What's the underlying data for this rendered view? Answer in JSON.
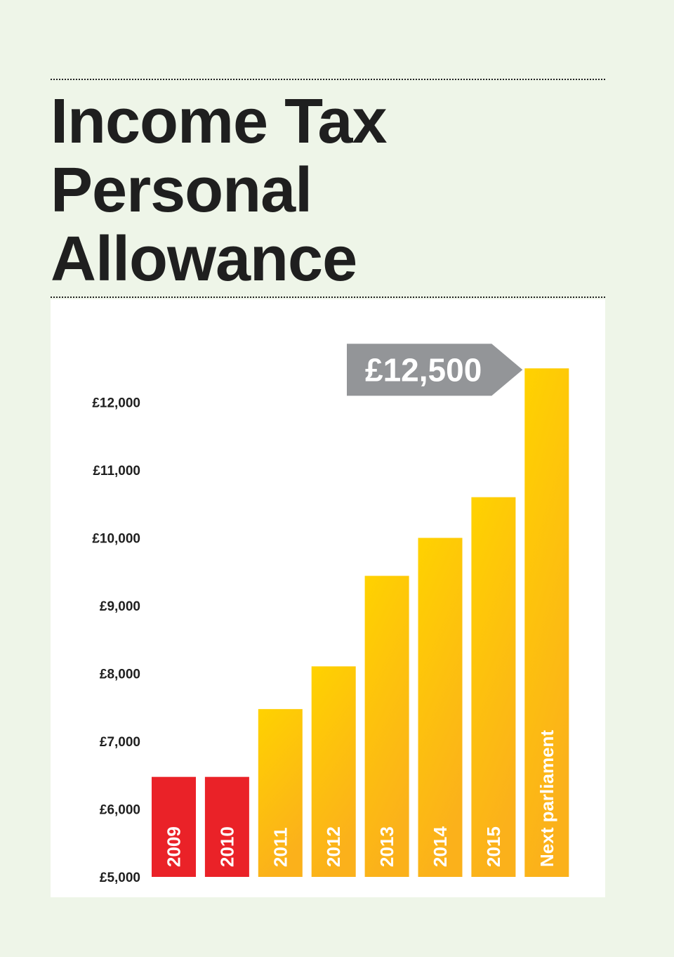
{
  "title_lines": [
    "Income Tax",
    "Personal",
    "Allowance"
  ],
  "colors": {
    "background": "#eef5e8",
    "panel": "#ffffff",
    "past_bar": "#ea2228",
    "current_bar_top": "#ffd200",
    "current_bar_bottom": "#fbb11b",
    "callout": "#939598"
  },
  "chart_data": {
    "type": "bar",
    "title": "Income Tax Personal Allowance",
    "categories": [
      "2009",
      "2010",
      "2011",
      "2012",
      "2013",
      "2014",
      "2015",
      "Next parliament"
    ],
    "values": [
      6475,
      6475,
      7475,
      8105,
      9440,
      10000,
      10600,
      12500
    ],
    "bar_colors": [
      "red",
      "red",
      "yellow",
      "yellow",
      "yellow",
      "yellow",
      "yellow",
      "yellow"
    ],
    "ylim": [
      5000,
      12500
    ],
    "yticks": [
      5000,
      6000,
      7000,
      8000,
      9000,
      10000,
      11000,
      12000
    ],
    "ytick_labels": [
      "£5,000",
      "£6,000",
      "£7,000",
      "£8,000",
      "£9,000",
      "£10,000",
      "£11,000",
      "£12,000"
    ],
    "xlabel": "",
    "ylabel": "",
    "grid": false,
    "annotation": {
      "text": "£12,500",
      "target": "Next parliament"
    }
  }
}
